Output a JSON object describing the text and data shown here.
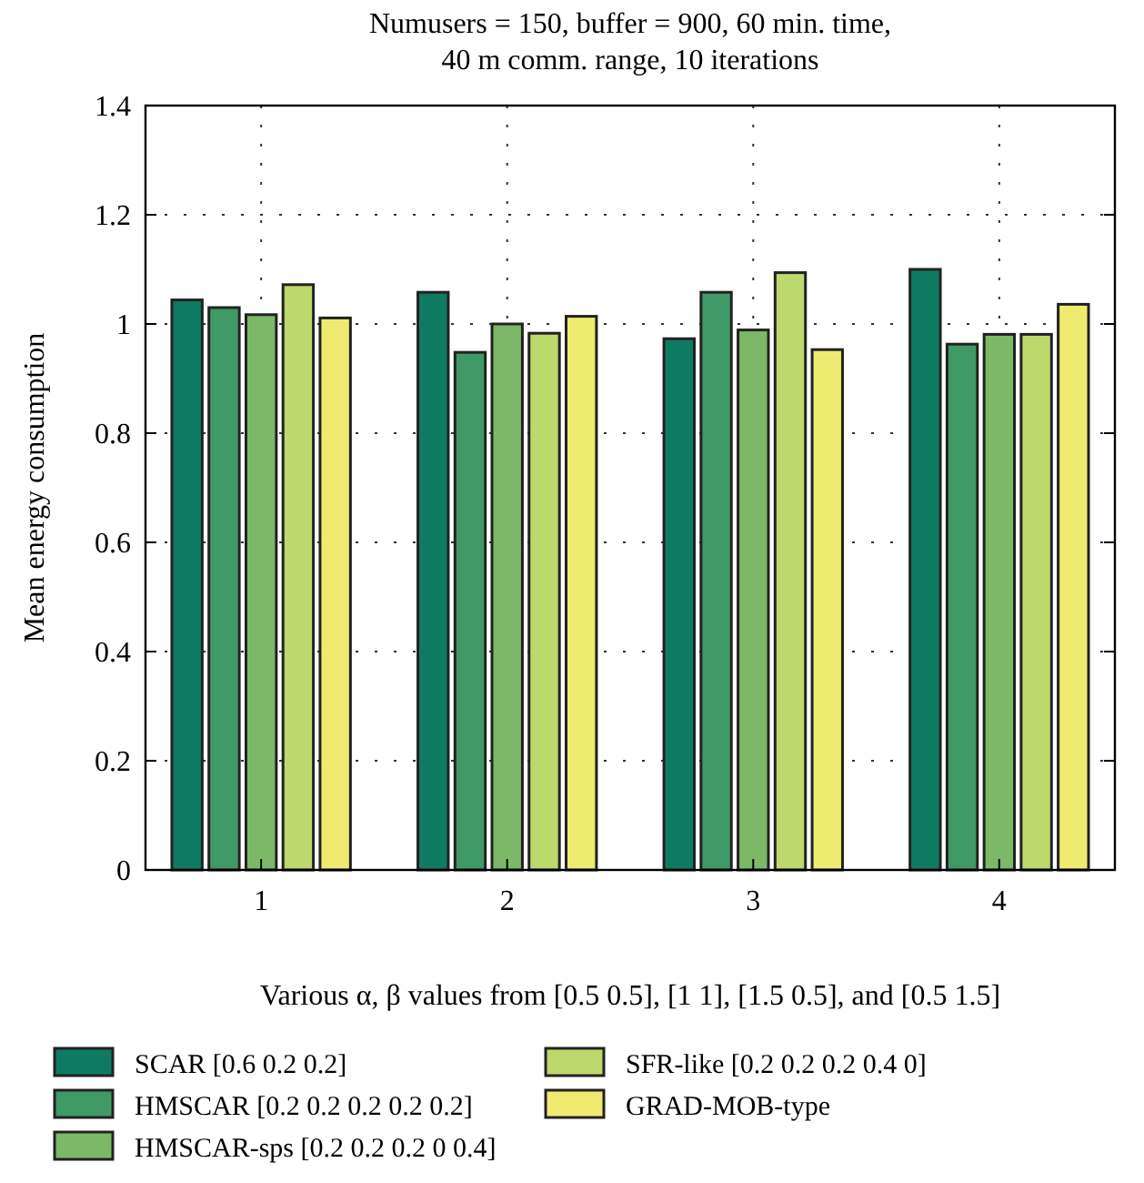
{
  "chart_data": {
    "type": "bar",
    "title": "Numusers = 150, buffer = 900, 60 min. time,\n40 m comm. range, 10 iterations",
    "xlabel": "Various α, β values from [0.5 0.5], [1 1], [1.5 0.5], and [0.5 1.5]",
    "ylabel": "Mean energy consumption",
    "categories": [
      "1",
      "2",
      "3",
      "4"
    ],
    "series": [
      {
        "name": "SCAR [0.6 0.2 0.2]",
        "color": "#0f7a62",
        "values": [
          1.044,
          1.058,
          0.973,
          1.1
        ]
      },
      {
        "name": "HMSCAR [0.2 0.2 0.2 0.2 0.2]",
        "color": "#3f9966",
        "values": [
          1.03,
          0.948,
          1.058,
          0.963
        ]
      },
      {
        "name": "HMSCAR-sps [0.2 0.2 0.2 0 0.4]",
        "color": "#7db868",
        "values": [
          1.017,
          1.0,
          0.989,
          0.981
        ]
      },
      {
        "name": "SFR-like [0.2 0.2 0.2 0.4 0]",
        "color": "#bdd86c",
        "values": [
          1.072,
          0.983,
          1.094,
          0.981
        ]
      },
      {
        "name": "GRAD-MOB-type",
        "color": "#efeb70",
        "values": [
          1.011,
          1.014,
          0.953,
          1.036
        ]
      }
    ],
    "ylim": [
      0,
      1.4
    ],
    "yticks": [
      0,
      0.2,
      0.4,
      0.6,
      0.8,
      1,
      1.2,
      1.4
    ],
    "grid": true,
    "legend": "bottom"
  }
}
